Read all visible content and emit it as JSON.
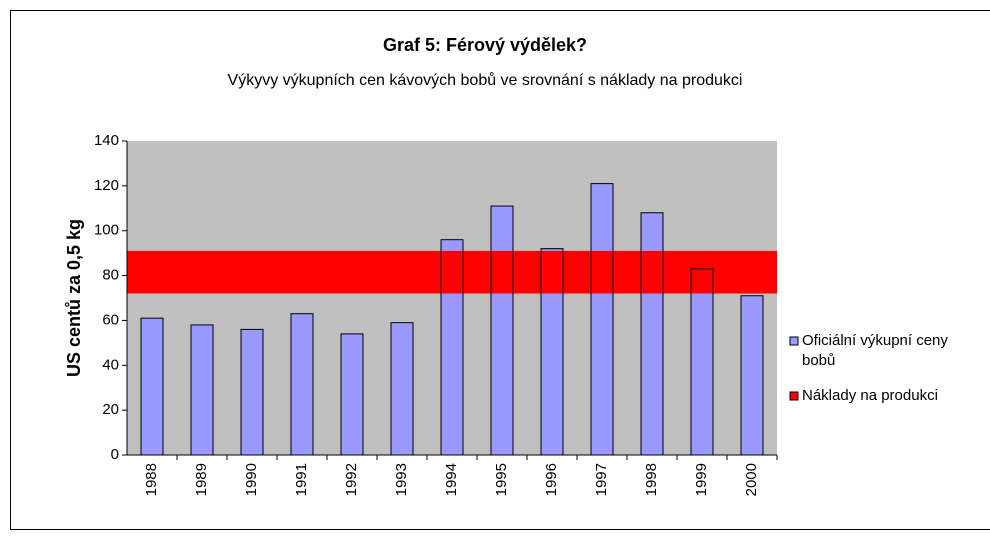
{
  "chart_data": {
    "type": "bar",
    "title": "Graf 5: Férový výdělek?",
    "subtitle": "Výkyvy výkupních cen kávových bobů ve srovnání s náklady na produkci",
    "y_label": "US centů za 0,5 kg",
    "categories": [
      "1988",
      "1989",
      "1990",
      "1991",
      "1992",
      "1993",
      "1994",
      "1995",
      "1996",
      "1997",
      "1998",
      "1999",
      "2000"
    ],
    "series": [
      {
        "name": "Oficiální výkupní ceny  bobů",
        "color": "#9999ff",
        "values": [
          61,
          58,
          56,
          63,
          54,
          59,
          96,
          111,
          92,
          121,
          108,
          83,
          71
        ]
      },
      {
        "name": "Náklady na produkci",
        "color": "#ff0000",
        "range": [
          72,
          91
        ]
      }
    ],
    "ylim": [
      0,
      140
    ],
    "yticks": [
      0,
      20,
      40,
      60,
      80,
      100,
      120,
      140
    ],
    "plot_background": "#c0c0c0",
    "legend": "right"
  }
}
